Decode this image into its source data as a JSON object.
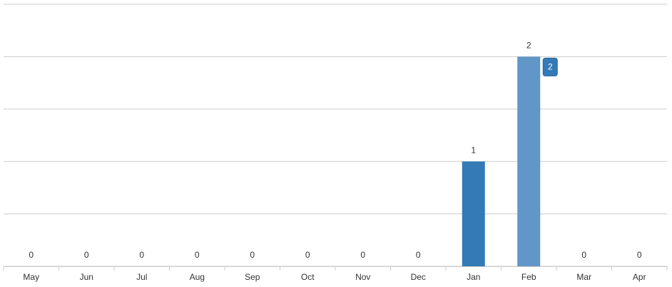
{
  "chart_data": {
    "type": "bar",
    "categories": [
      "May",
      "Jun",
      "Jul",
      "Aug",
      "Sep",
      "Oct",
      "Nov",
      "Dec",
      "Jan",
      "Feb",
      "Mar",
      "Apr"
    ],
    "values": [
      0,
      0,
      0,
      0,
      0,
      0,
      0,
      0,
      1,
      2,
      0,
      0
    ],
    "colors": [
      "#337ab7",
      "#337ab7",
      "#337ab7",
      "#337ab7",
      "#337ab7",
      "#337ab7",
      "#337ab7",
      "#337ab7",
      "#337ab7",
      "#6096c8",
      "#337ab7",
      "#337ab7"
    ],
    "ylim": [
      0,
      2.5
    ],
    "yticks": [
      0,
      0.5,
      1,
      1.5,
      2,
      2.5
    ],
    "grid": true
  }
}
